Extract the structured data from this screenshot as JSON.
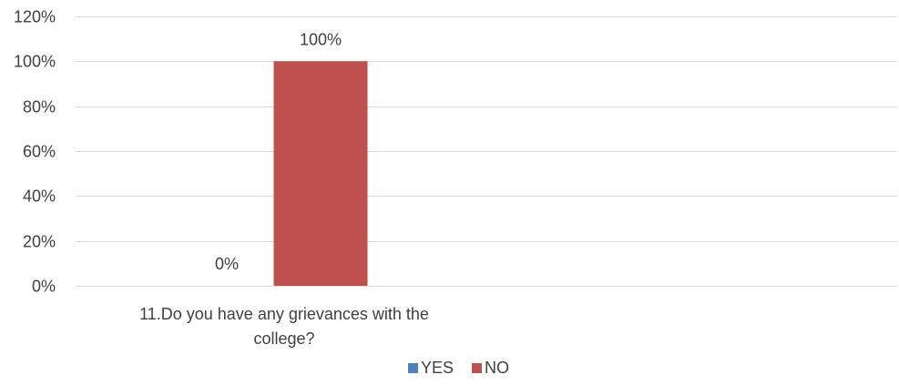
{
  "chart_data": {
    "type": "bar",
    "categories": [
      "11.Do you have any grievances with the college?"
    ],
    "category_label_lines": [
      [
        "11.Do you have any grievances with the",
        "college?"
      ]
    ],
    "series": [
      {
        "name": "YES",
        "values": [
          0
        ],
        "labels": [
          "0%"
        ],
        "color": "#4f81bd"
      },
      {
        "name": "NO",
        "values": [
          100
        ],
        "labels": [
          "100%"
        ],
        "color": "#c0504d"
      }
    ],
    "ylim": [
      0,
      120
    ],
    "yticks": [
      0,
      20,
      40,
      60,
      80,
      100,
      120
    ],
    "ytick_labels": [
      "0%",
      "20%",
      "40%",
      "60%",
      "80%",
      "100%",
      "120%"
    ],
    "grid": true,
    "legend_position": "bottom",
    "title": "",
    "xlabel": "",
    "ylabel": ""
  }
}
